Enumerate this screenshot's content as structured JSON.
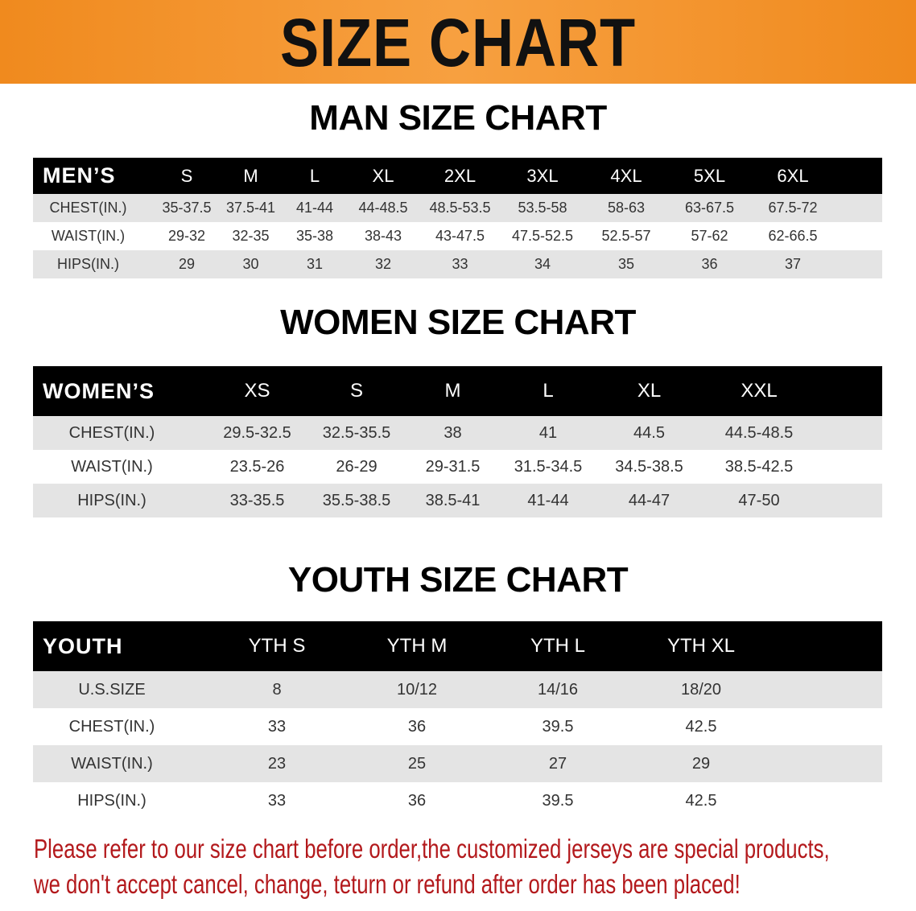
{
  "banner": {
    "title": "SIZE CHART",
    "color": "#f08a1e"
  },
  "men": {
    "title": "MAN SIZE CHART",
    "header": [
      "MEN’S",
      "S",
      "M",
      "L",
      "XL",
      "2XL",
      "3XL",
      "4XL",
      "5XL",
      "6XL"
    ],
    "rows": [
      [
        "CHEST(IN.)",
        "35-37.5",
        "37.5-41",
        "41-44",
        "44-48.5",
        "48.5-53.5",
        "53.5-58",
        "58-63",
        "63-67.5",
        "67.5-72"
      ],
      [
        "WAIST(IN.)",
        "29-32",
        "32-35",
        "35-38",
        "38-43",
        "43-47.5",
        "47.5-52.5",
        "52.5-57",
        "57-62",
        "62-66.5"
      ],
      [
        "HIPS(IN.)",
        "29",
        "30",
        "31",
        "32",
        "33",
        "34",
        "35",
        "36",
        "37"
      ]
    ]
  },
  "women": {
    "title": "WOMEN SIZE CHART",
    "header": [
      "WOMEN’S",
      "XS",
      "S",
      "M",
      "L",
      "XL",
      "XXL"
    ],
    "rows": [
      [
        "CHEST(IN.)",
        "29.5-32.5",
        "32.5-35.5",
        "38",
        "41",
        "44.5",
        "44.5-48.5"
      ],
      [
        "WAIST(IN.)",
        "23.5-26",
        "26-29",
        "29-31.5",
        "31.5-34.5",
        "34.5-38.5",
        "38.5-42.5"
      ],
      [
        "HIPS(IN.)",
        "33-35.5",
        "35.5-38.5",
        "38.5-41",
        "41-44",
        "44-47",
        "47-50"
      ]
    ]
  },
  "youth": {
    "title": "YOUTH SIZE CHART",
    "header": [
      "YOUTH",
      "YTH S",
      "YTH M",
      "YTH L",
      "YTH XL"
    ],
    "rows": [
      [
        "U.S.SIZE",
        "8",
        "10/12",
        "14/16",
        "18/20"
      ],
      [
        "CHEST(IN.)",
        "33",
        "36",
        "39.5",
        "42.5"
      ],
      [
        "WAIST(IN.)",
        "23",
        "25",
        "27",
        "29"
      ],
      [
        "HIPS(IN.)",
        "33",
        "36",
        "39.5",
        "42.5"
      ]
    ]
  },
  "note": {
    "line1": "Please refer to our size chart before order,the customized jerseys are special products,",
    "line2": "we don't accept cancel, change, teturn or refund after order has been placed!",
    "color": "#b3191c"
  }
}
